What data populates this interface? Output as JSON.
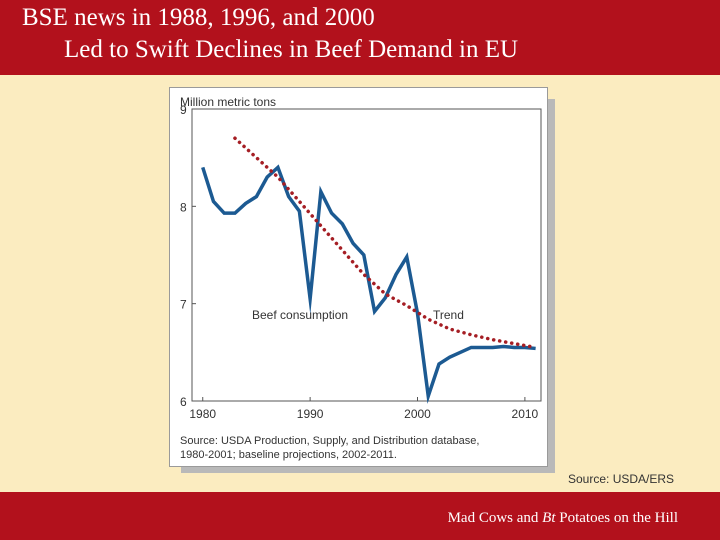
{
  "header": {
    "title_line1": "BSE news in 1988, 1996, and 2000",
    "title_line2": "Led to Swift Declines in Beef Demand in EU",
    "background": "#b2111c"
  },
  "chart_data": {
    "type": "line",
    "ylabel": "Million metric tons",
    "ylim": [
      6,
      9
    ],
    "xlim": [
      1979,
      2011.5
    ],
    "yticks": [
      6,
      7,
      8,
      9
    ],
    "xticks": [
      1980,
      1990,
      2000,
      2010
    ],
    "grid": false,
    "series": [
      {
        "name": "Beef consumption",
        "style": "solid",
        "color": "#1c5a92",
        "x": [
          1980,
          1981,
          1982,
          1983,
          1984,
          1985,
          1986,
          1987,
          1988,
          1989,
          1990,
          1991,
          1992,
          1993,
          1994,
          1995,
          1996,
          1997,
          1998,
          1999,
          2000,
          2001,
          2002,
          2003,
          2004,
          2005,
          2006,
          2007,
          2008,
          2009,
          2010,
          2011
        ],
        "values": [
          8.4,
          8.05,
          7.93,
          7.93,
          8.03,
          8.1,
          8.3,
          8.4,
          8.1,
          7.95,
          7.05,
          8.15,
          7.93,
          7.82,
          7.62,
          7.5,
          6.92,
          7.06,
          7.3,
          7.48,
          6.9,
          6.05,
          6.38,
          6.45,
          6.5,
          6.55,
          6.55,
          6.55,
          6.56,
          6.55,
          6.55,
          6.54
        ]
      },
      {
        "name": "Trend",
        "style": "dotted",
        "color": "#a51e24",
        "x": [
          1983,
          1985,
          1987,
          1989,
          1991,
          1993,
          1995,
          1997,
          1999,
          2001,
          2003,
          2005,
          2007,
          2009,
          2011
        ],
        "values": [
          8.7,
          8.5,
          8.3,
          8.05,
          7.8,
          7.55,
          7.3,
          7.1,
          6.98,
          6.84,
          6.74,
          6.68,
          6.63,
          6.59,
          6.55
        ]
      }
    ],
    "annotations": {
      "series_label_beef": "Beef consumption",
      "series_label_trend": "Trend"
    },
    "source": "Source: USDA Production, Supply, and Distribution database,",
    "source_line2": "1980-2001; baseline projections, 2002-2011."
  },
  "source_note": "Source:  USDA/ERS",
  "footer": {
    "text_before": "Mad Cows and ",
    "text_italic": "Bt",
    "text_after": " Potatoes on the Hill"
  }
}
